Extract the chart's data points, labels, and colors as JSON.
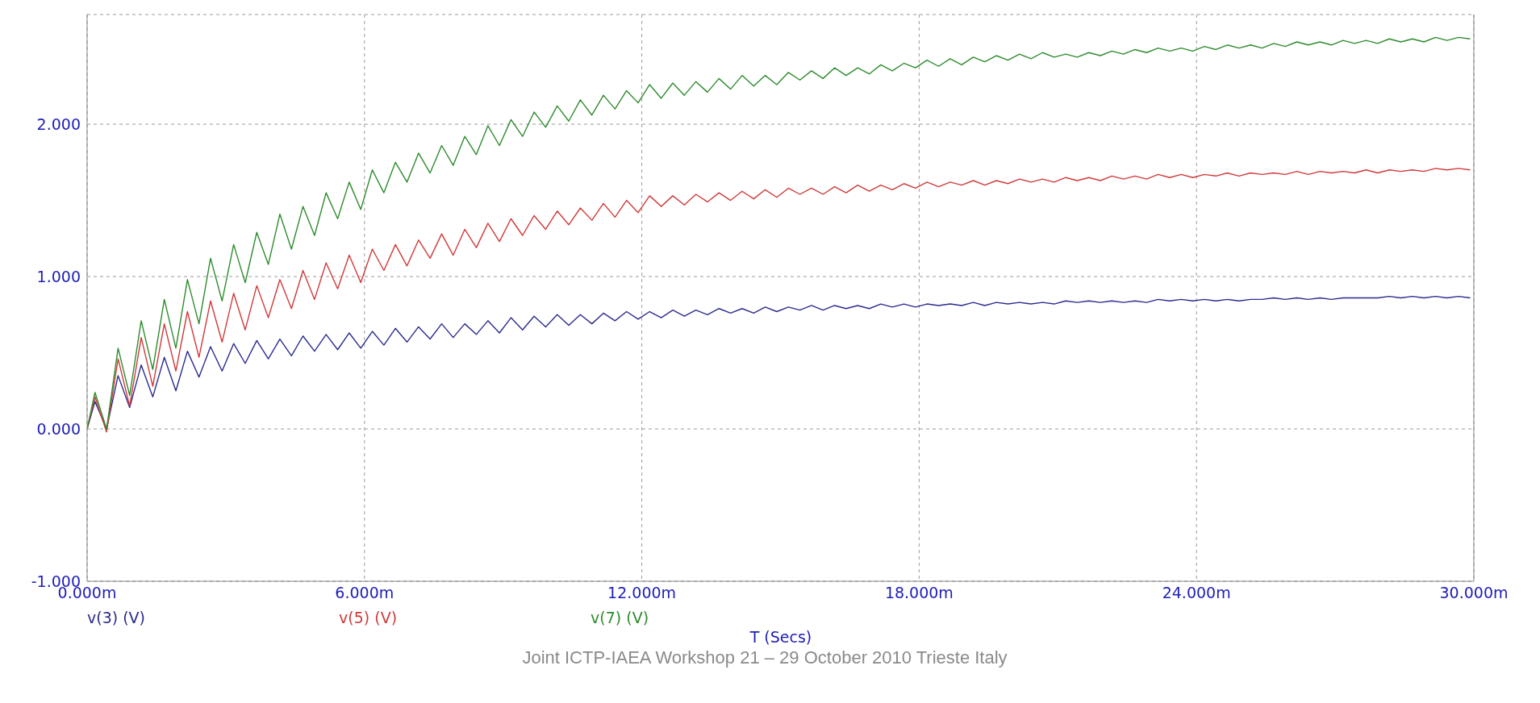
{
  "chart_data": {
    "type": "line",
    "xlabel": "T (Secs)",
    "annotations": [
      "Joint ICTP-IAEA Workshop 21 – 29 October 2010 Trieste Italy"
    ],
    "x": [
      0,
      0.17,
      0.42,
      0.67,
      0.92,
      1.17,
      1.42,
      1.67,
      1.92,
      2.17,
      2.42,
      2.67,
      2.92,
      3.17,
      3.42,
      3.67,
      3.92,
      4.17,
      4.42,
      4.67,
      4.92,
      5.17,
      5.42,
      5.67,
      5.92,
      6.17,
      6.42,
      6.67,
      6.92,
      7.17,
      7.42,
      7.67,
      7.92,
      8.17,
      8.42,
      8.67,
      8.92,
      9.17,
      9.42,
      9.67,
      9.92,
      10.17,
      10.42,
      10.67,
      10.92,
      11.17,
      11.42,
      11.67,
      11.92,
      12.17,
      12.42,
      12.67,
      12.92,
      13.17,
      13.42,
      13.67,
      13.92,
      14.17,
      14.42,
      14.67,
      14.92,
      15.17,
      15.42,
      15.67,
      15.92,
      16.17,
      16.42,
      16.67,
      16.92,
      17.17,
      17.42,
      17.67,
      17.92,
      18.17,
      18.42,
      18.67,
      18.92,
      19.17,
      19.42,
      19.67,
      19.92,
      20.17,
      20.42,
      20.67,
      20.92,
      21.17,
      21.42,
      21.67,
      21.92,
      22.17,
      22.42,
      22.67,
      22.92,
      23.17,
      23.42,
      23.67,
      23.92,
      24.17,
      24.42,
      24.67,
      24.92,
      25.17,
      25.42,
      25.67,
      25.92,
      26.17,
      26.42,
      26.67,
      26.92,
      27.17,
      27.42,
      27.67,
      27.92,
      28.17,
      28.42,
      28.67,
      28.92,
      29.17,
      29.42,
      29.67,
      29.92
    ],
    "series": [
      {
        "name": "v(3) (V)",
        "color": "#2b2b8f",
        "values": [
          0,
          0.18,
          0.0,
          0.35,
          0.14,
          0.42,
          0.21,
          0.47,
          0.25,
          0.51,
          0.34,
          0.54,
          0.38,
          0.56,
          0.43,
          0.58,
          0.46,
          0.59,
          0.48,
          0.61,
          0.51,
          0.62,
          0.52,
          0.63,
          0.53,
          0.64,
          0.55,
          0.66,
          0.57,
          0.67,
          0.59,
          0.69,
          0.6,
          0.69,
          0.62,
          0.71,
          0.63,
          0.73,
          0.65,
          0.74,
          0.67,
          0.75,
          0.68,
          0.75,
          0.69,
          0.76,
          0.71,
          0.77,
          0.72,
          0.77,
          0.73,
          0.78,
          0.74,
          0.78,
          0.75,
          0.79,
          0.76,
          0.79,
          0.76,
          0.8,
          0.77,
          0.8,
          0.78,
          0.81,
          0.78,
          0.81,
          0.79,
          0.81,
          0.79,
          0.82,
          0.8,
          0.82,
          0.8,
          0.82,
          0.81,
          0.82,
          0.81,
          0.83,
          0.81,
          0.83,
          0.82,
          0.83,
          0.82,
          0.83,
          0.82,
          0.84,
          0.83,
          0.84,
          0.83,
          0.84,
          0.83,
          0.84,
          0.83,
          0.85,
          0.84,
          0.85,
          0.84,
          0.85,
          0.84,
          0.85,
          0.84,
          0.85,
          0.85,
          0.86,
          0.85,
          0.86,
          0.85,
          0.86,
          0.85,
          0.86,
          0.86,
          0.86,
          0.86,
          0.87,
          0.86,
          0.87,
          0.86,
          0.87,
          0.86,
          0.87,
          0.86
        ]
      },
      {
        "name": "v(5) (V)",
        "color": "#d03a3a",
        "values": [
          0,
          0.21,
          -0.02,
          0.46,
          0.15,
          0.6,
          0.28,
          0.69,
          0.38,
          0.77,
          0.47,
          0.84,
          0.57,
          0.89,
          0.65,
          0.94,
          0.73,
          0.98,
          0.79,
          1.04,
          0.85,
          1.09,
          0.92,
          1.14,
          0.96,
          1.18,
          1.04,
          1.21,
          1.07,
          1.24,
          1.12,
          1.28,
          1.14,
          1.31,
          1.19,
          1.35,
          1.23,
          1.38,
          1.27,
          1.4,
          1.31,
          1.43,
          1.34,
          1.45,
          1.37,
          1.48,
          1.39,
          1.5,
          1.42,
          1.53,
          1.46,
          1.53,
          1.47,
          1.54,
          1.49,
          1.55,
          1.5,
          1.56,
          1.51,
          1.57,
          1.52,
          1.58,
          1.54,
          1.58,
          1.54,
          1.59,
          1.55,
          1.6,
          1.56,
          1.6,
          1.57,
          1.61,
          1.58,
          1.62,
          1.59,
          1.62,
          1.6,
          1.63,
          1.6,
          1.63,
          1.61,
          1.64,
          1.62,
          1.64,
          1.62,
          1.65,
          1.63,
          1.65,
          1.63,
          1.66,
          1.64,
          1.66,
          1.64,
          1.67,
          1.65,
          1.67,
          1.65,
          1.67,
          1.66,
          1.68,
          1.66,
          1.68,
          1.67,
          1.68,
          1.67,
          1.69,
          1.67,
          1.69,
          1.68,
          1.69,
          1.68,
          1.7,
          1.68,
          1.7,
          1.69,
          1.7,
          1.69,
          1.71,
          1.7,
          1.71,
          1.7
        ]
      },
      {
        "name": "v(7) (V)",
        "color": "#2e8b2e",
        "values": [
          0,
          0.24,
          0.0,
          0.53,
          0.22,
          0.71,
          0.39,
          0.85,
          0.53,
          0.98,
          0.69,
          1.12,
          0.84,
          1.21,
          0.96,
          1.29,
          1.08,
          1.41,
          1.18,
          1.46,
          1.27,
          1.55,
          1.38,
          1.62,
          1.44,
          1.7,
          1.55,
          1.75,
          1.62,
          1.81,
          1.68,
          1.86,
          1.73,
          1.92,
          1.8,
          1.99,
          1.86,
          2.03,
          1.92,
          2.08,
          1.98,
          2.12,
          2.02,
          2.16,
          2.06,
          2.19,
          2.1,
          2.22,
          2.14,
          2.26,
          2.17,
          2.27,
          2.19,
          2.28,
          2.21,
          2.3,
          2.23,
          2.32,
          2.25,
          2.32,
          2.26,
          2.34,
          2.29,
          2.35,
          2.3,
          2.37,
          2.32,
          2.37,
          2.33,
          2.39,
          2.35,
          2.4,
          2.37,
          2.42,
          2.38,
          2.43,
          2.39,
          2.44,
          2.41,
          2.45,
          2.42,
          2.46,
          2.43,
          2.47,
          2.44,
          2.46,
          2.44,
          2.47,
          2.45,
          2.48,
          2.46,
          2.49,
          2.47,
          2.5,
          2.48,
          2.5,
          2.48,
          2.51,
          2.49,
          2.52,
          2.5,
          2.52,
          2.5,
          2.53,
          2.51,
          2.54,
          2.52,
          2.54,
          2.52,
          2.55,
          2.53,
          2.55,
          2.53,
          2.56,
          2.54,
          2.56,
          2.54,
          2.57,
          2.55,
          2.57,
          2.56
        ]
      }
    ],
    "xlim": [
      0,
      30
    ],
    "xticks": [
      {
        "value": 0,
        "label": "0.000m"
      },
      {
        "value": 6,
        "label": "6.000m"
      },
      {
        "value": 12,
        "label": "12.000m"
      },
      {
        "value": 18,
        "label": "18.000m"
      },
      {
        "value": 24,
        "label": "24.000m"
      },
      {
        "value": 30,
        "label": "30.000m"
      }
    ],
    "ylim": [
      -1,
      2.72
    ],
    "yticks": [
      {
        "value": -1,
        "label": "-1.000"
      },
      {
        "value": 0,
        "label": "0.000"
      },
      {
        "value": 1,
        "label": "1.000"
      },
      {
        "value": 2,
        "label": "2.000"
      }
    ],
    "grid": true,
    "legend": "bottom",
    "line_style": "solid"
  }
}
